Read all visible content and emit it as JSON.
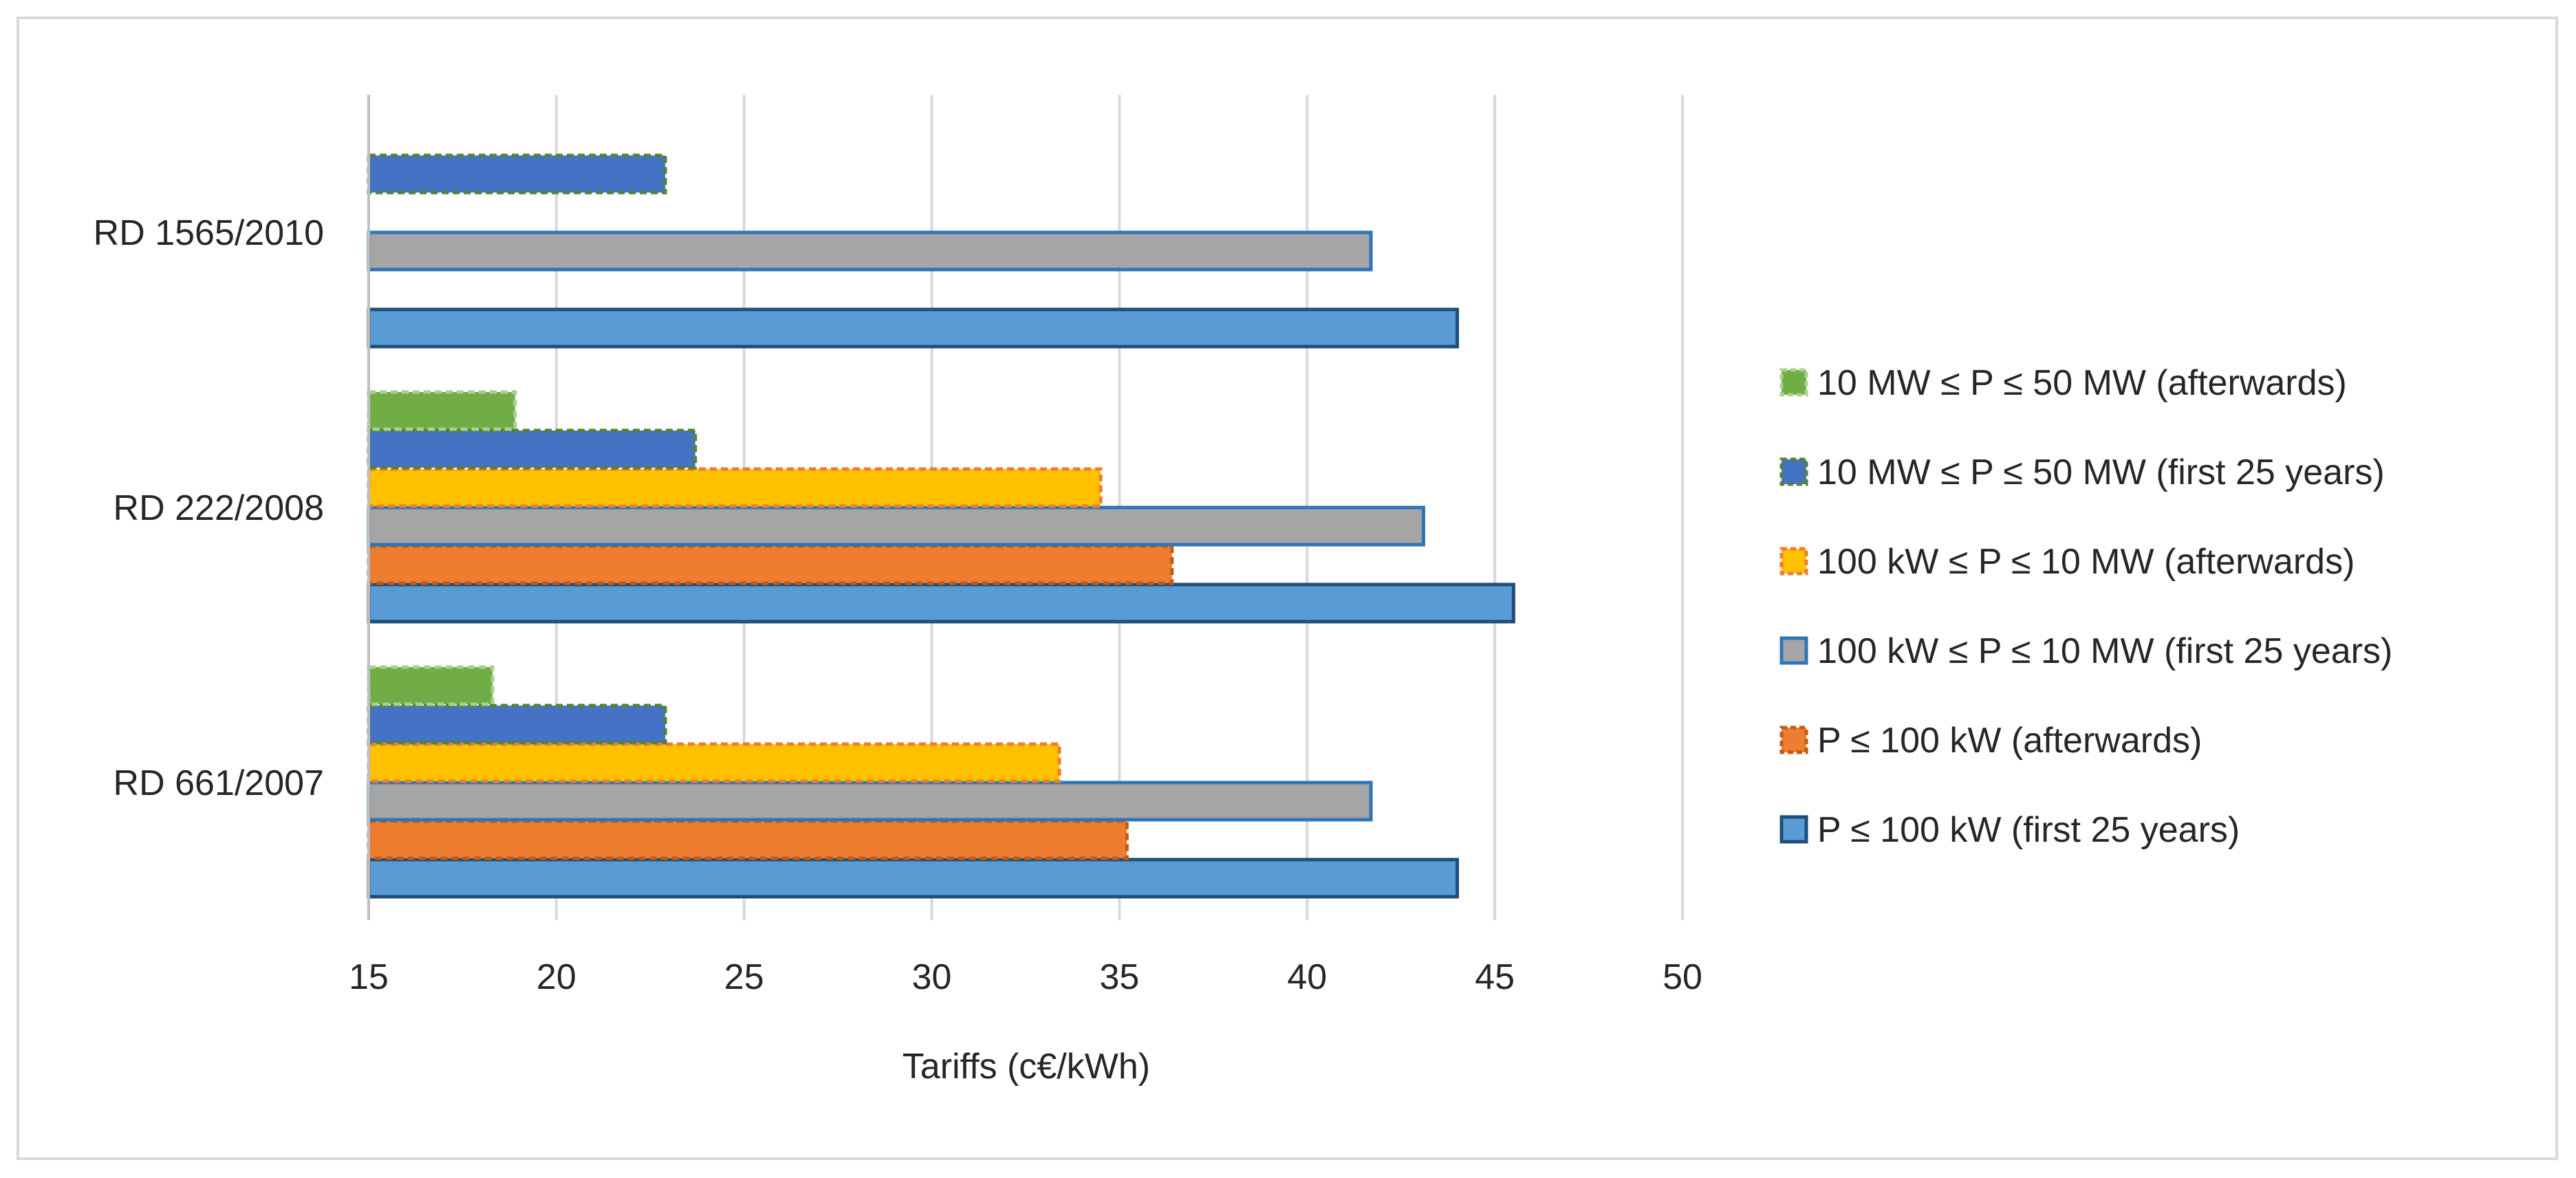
{
  "chart_data": {
    "type": "bar",
    "orientation": "horizontal",
    "categories": [
      "RD 661/2007",
      "RD 222/2008",
      "RD 1565/2010"
    ],
    "xlabel": "Tariffs (c€/kWh)",
    "xlim": [
      15,
      50
    ],
    "xticks": [
      15,
      20,
      25,
      30,
      35,
      40,
      45,
      50
    ],
    "grid": "vertical",
    "legend_position": "right",
    "series": [
      {
        "name": "P ≤ 100 kW (first 25 years)",
        "values": [
          44.0,
          45.5,
          44.0
        ],
        "fill": "#5b9bd5",
        "stroke": "#1f4e79",
        "dashed": false
      },
      {
        "name": "P ≤ 100 kW (afterwards)",
        "values": [
          35.2,
          36.4,
          null
        ],
        "fill": "#ed7d31",
        "stroke": "#c55a11",
        "dashed": true
      },
      {
        "name": "100 kW ≤ P ≤ 10 MW (first 25 years)",
        "values": [
          41.7,
          43.1,
          41.7
        ],
        "fill": "#a5a5a5",
        "stroke": "#2e75b6",
        "dashed": false
      },
      {
        "name": "100 kW ≤ P ≤ 10 MW (afterwards)",
        "values": [
          33.4,
          34.5,
          null
        ],
        "fill": "#ffc000",
        "stroke": "#ed7d31",
        "dashed": true
      },
      {
        "name": "10 MW ≤ P ≤ 50 MW (first 25 years)",
        "values": [
          22.9,
          23.7,
          22.9
        ],
        "fill": "#4472c4",
        "stroke": "#548235",
        "dashed": true
      },
      {
        "name": "10 MW ≤ P ≤ 50 MW (afterwards)",
        "values": [
          18.3,
          18.9,
          null
        ],
        "fill": "#70ad47",
        "stroke": "#a9d18e",
        "dashed": true
      }
    ]
  }
}
